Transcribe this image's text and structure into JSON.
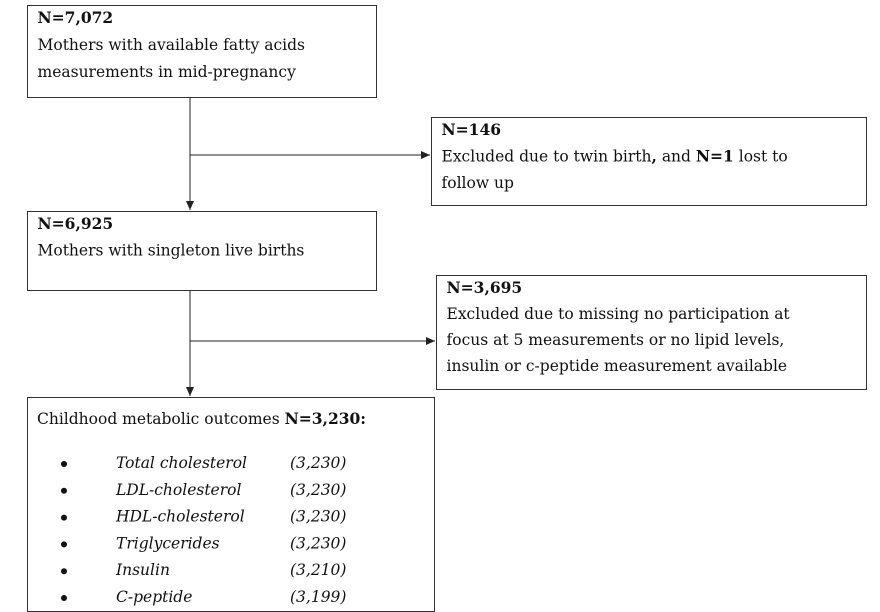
{
  "start": {
    "count": "N=7,072",
    "lines": [
      "Mothers with available fatty acids",
      "measurements in mid-pregnancy"
    ]
  },
  "exclusion_1": {
    "count": "N=146",
    "lines": [
      [
        {
          "text": "Excluded due to twin birth"
        },
        {
          "text": ",",
          "bold": true
        },
        {
          "text": " and "
        },
        {
          "text": "N=1",
          "bold": true
        },
        {
          "text": " lost to"
        }
      ],
      "follow up"
    ]
  },
  "singleton": {
    "count": "N=6,925",
    "lines": [
      "Mothers with singleton live births"
    ]
  },
  "exclusion_2": {
    "count": "N=3,695",
    "lines": [
      "Excluded due to missing no participation at",
      "focus at 5 measurements or no lipid levels,",
      "insulin or c-peptide measurement available"
    ]
  },
  "outcomes": {
    "title": [
      {
        "text": "Childhood metabolic outcomes "
      },
      {
        "text": "N=3,230:",
        "bold": true
      }
    ],
    "items": [
      {
        "name": "Total cholesterol",
        "count": "(3,230)"
      },
      {
        "name": "LDL-cholesterol",
        "count": "(3,230)"
      },
      {
        "name": "HDL-cholesterol",
        "count": "(3,230)"
      },
      {
        "name": "Triglycerides",
        "count": "(3,230)"
      },
      {
        "name": "Insulin",
        "count": "(3,210)"
      },
      {
        "name": "C-peptide",
        "count": "(3,199)"
      }
    ]
  }
}
